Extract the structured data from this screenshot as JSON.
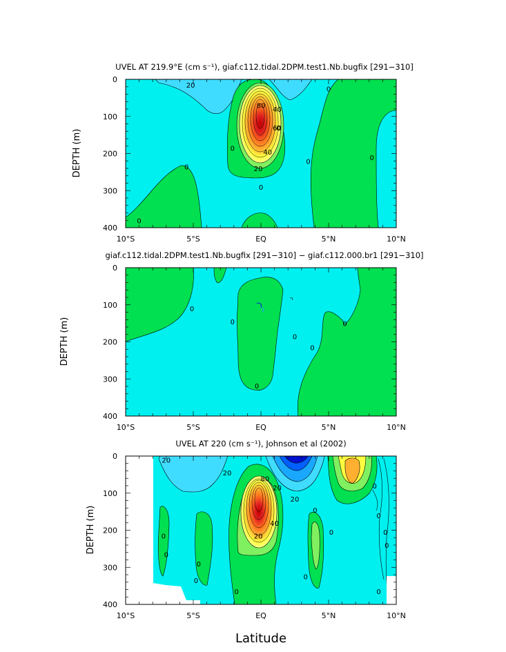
{
  "figure": {
    "xlabel": "Latitude"
  },
  "colors": {
    "cyan": "#00f0f0",
    "lightblue": "#40dcff",
    "blue1": "#1aa8ff",
    "blue2": "#0060ff",
    "blue3": "#0010d0",
    "green": "#00e050",
    "lightgreen": "#80f060",
    "yellow": "#ffff40",
    "orange": "#ffb030",
    "red": "#e02020"
  },
  "chart_data": [
    {
      "type": "contour",
      "title": "UVEL AT 219.9°E (cm s⁻¹), giaf.c112.tidal.2DPM.test1.Nb.bugfix [291−310]",
      "ylabel": "DEPTH (m)",
      "xlim": [
        -10,
        10
      ],
      "ylim": [
        400,
        0
      ],
      "xticks": [
        "10°S",
        "5°S",
        "EQ",
        "5°N",
        "10°N"
      ],
      "yticks": [
        "0",
        "100",
        "200",
        "300",
        "400"
      ],
      "contour_interval": 10,
      "core": {
        "lat": 0,
        "depth": 120,
        "max": 80
      },
      "contour_labels": [
        {
          "text": "20",
          "lat": -5.2,
          "depth": 15
        },
        {
          "text": "80",
          "lat": 0,
          "depth": 70
        },
        {
          "text": "40",
          "lat": 1.2,
          "depth": 80
        },
        {
          "text": "60",
          "lat": 1.2,
          "depth": 130
        },
        {
          "text": "0",
          "lat": 1.3,
          "depth": 130
        },
        {
          "text": "40",
          "lat": 0.5,
          "depth": 195
        },
        {
          "text": "20",
          "lat": -0.2,
          "depth": 240
        },
        {
          "text": "0",
          "lat": -2.1,
          "depth": 185
        },
        {
          "text": "0",
          "lat": -5.5,
          "depth": 235
        },
        {
          "text": "0",
          "lat": 0,
          "depth": 290
        },
        {
          "text": "0",
          "lat": 3.5,
          "depth": 220
        },
        {
          "text": "0",
          "lat": 5,
          "depth": 25
        },
        {
          "text": "0",
          "lat": 8.2,
          "depth": 210
        },
        {
          "text": "0",
          "lat": -9,
          "depth": 380
        }
      ]
    },
    {
      "type": "contour",
      "title": "giaf.c112.tidal.2DPM.test1.Nb.bugfix [291−310] − giaf.c112.000.br1 [291−310]",
      "ylabel": "DEPTH (m)",
      "xlim": [
        -10,
        10
      ],
      "ylim": [
        400,
        0
      ],
      "xticks": [
        "10°S",
        "5°S",
        "EQ",
        "5°N",
        "10°N"
      ],
      "yticks": [
        "0",
        "100",
        "200",
        "300",
        "400"
      ],
      "contour_labels": [
        {
          "text": "0",
          "lat": -5.1,
          "depth": 110
        },
        {
          "text": "0",
          "lat": -2.1,
          "depth": 145
        },
        {
          "text": "0",
          "lat": 2.5,
          "depth": 185
        },
        {
          "text": "0",
          "lat": 3.8,
          "depth": 215
        },
        {
          "text": "0",
          "lat": 6.2,
          "depth": 150
        },
        {
          "text": "0",
          "lat": -0.3,
          "depth": 318
        }
      ]
    },
    {
      "type": "contour",
      "title": "UVEL AT 220 (cm s⁻¹), Johnson et al (2002)",
      "ylabel": "DEPTH (m)",
      "xlim": [
        -10,
        10
      ],
      "ylim": [
        400,
        0
      ],
      "xticks": [
        "10°S",
        "5°S",
        "EQ",
        "5°N",
        "10°N"
      ],
      "yticks": [
        "0",
        "100",
        "200",
        "300",
        "400"
      ],
      "contour_interval": 10,
      "core": {
        "lat": 0,
        "depth": 110,
        "max": 90
      },
      "contour_labels": [
        {
          "text": "20",
          "lat": -7,
          "depth": 10
        },
        {
          "text": "20",
          "lat": -2.5,
          "depth": 45
        },
        {
          "text": "20",
          "lat": 1.2,
          "depth": 85
        },
        {
          "text": "20",
          "lat": 2.5,
          "depth": 115
        },
        {
          "text": "20",
          "lat": -0.2,
          "depth": 215
        },
        {
          "text": "40",
          "lat": 1,
          "depth": 180
        },
        {
          "text": "80",
          "lat": 0.3,
          "depth": 60
        },
        {
          "text": "0",
          "lat": 4,
          "depth": 145
        },
        {
          "text": "0",
          "lat": 5.2,
          "depth": 205
        },
        {
          "text": "0",
          "lat": 8.4,
          "depth": 80
        },
        {
          "text": "0",
          "lat": 8.7,
          "depth": 160
        },
        {
          "text": "0",
          "lat": 9.2,
          "depth": 205
        },
        {
          "text": "0",
          "lat": 9.3,
          "depth": 240
        },
        {
          "text": "0",
          "lat": -7.2,
          "depth": 215
        },
        {
          "text": "0",
          "lat": -7,
          "depth": 265
        },
        {
          "text": "0",
          "lat": -4.6,
          "depth": 290
        },
        {
          "text": "0",
          "lat": -4.8,
          "depth": 335
        },
        {
          "text": "0",
          "lat": 3.3,
          "depth": 325
        },
        {
          "text": "0",
          "lat": 8.7,
          "depth": 365
        },
        {
          "text": "0",
          "lat": -1.8,
          "depth": 365
        }
      ]
    }
  ]
}
